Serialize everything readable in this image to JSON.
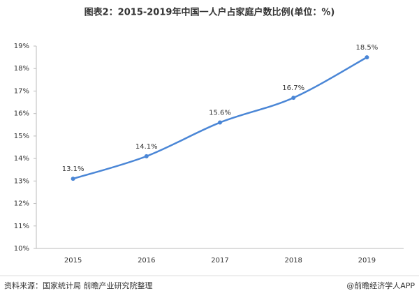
{
  "chart_data": {
    "type": "line",
    "title": "图表2：2015-2019年中国一人户占家庭户数比例(单位：%)",
    "categories": [
      "2015",
      "2016",
      "2017",
      "2018",
      "2019"
    ],
    "series": [
      {
        "name": "一人户占家庭户数比例",
        "color": "#4a86d6",
        "values": [
          13.1,
          14.1,
          15.6,
          16.7,
          18.5
        ],
        "value_labels": [
          "13.1%",
          "14.1%",
          "15.6%",
          "16.7%",
          "18.5%"
        ]
      }
    ],
    "ylim": [
      10,
      19
    ],
    "yticks": [
      {
        "value": 10,
        "label": "10%"
      },
      {
        "value": 11,
        "label": "11%"
      },
      {
        "value": 12,
        "label": "12%"
      },
      {
        "value": 13,
        "label": "13%"
      },
      {
        "value": 14,
        "label": "14%"
      },
      {
        "value": 15,
        "label": "15%"
      },
      {
        "value": 16,
        "label": "16%"
      },
      {
        "value": 17,
        "label": "17%"
      },
      {
        "value": 18,
        "label": "18%"
      },
      {
        "value": 19,
        "label": "19%"
      }
    ],
    "source": "资料来源：国家统计局 前瞻产业研究院整理",
    "credit": "@前瞻经济学人APP"
  }
}
